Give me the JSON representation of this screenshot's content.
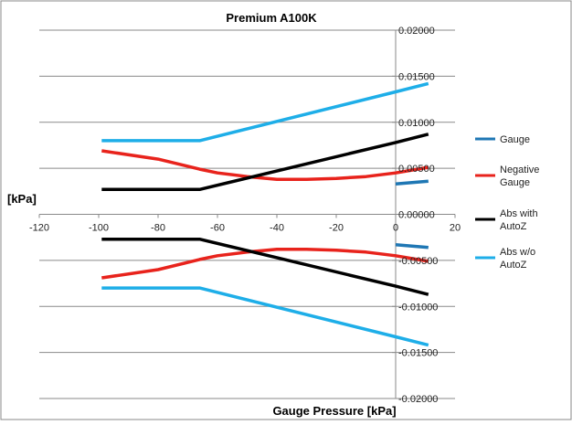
{
  "chart_data": {
    "type": "line",
    "title": "Premium A100K",
    "xlabel": "Gauge Pressure [kPa]",
    "ylabel": "[kPa]",
    "xlim": [
      -120,
      20
    ],
    "ylim": [
      -0.02,
      0.02
    ],
    "x_ticks": [
      "-120",
      "-100",
      "-80",
      "-60",
      "-40",
      "-20",
      "0",
      "20"
    ],
    "y_ticks": [
      "0.02000",
      "0.01500",
      "0.01000",
      "0.00500",
      "0.00000",
      "-0.00500",
      "-0.01000",
      "-0.01500",
      "-0.02000"
    ],
    "grid": "horizontal",
    "legend": "right",
    "series": [
      {
        "name": "Gauge",
        "color": "#1f77b4",
        "segments": [
          [
            [
              0,
              0.0033
            ],
            [
              11,
              0.0036
            ]
          ],
          [
            [
              0,
              -0.0033
            ],
            [
              11,
              -0.0036
            ]
          ]
        ]
      },
      {
        "name": "Negative Gauge",
        "color": "#e8231c",
        "segments": [
          [
            [
              -99,
              0.0069
            ],
            [
              -80,
              0.006
            ],
            [
              -66,
              0.0049
            ],
            [
              -60,
              0.0045
            ],
            [
              -50,
              0.0041
            ],
            [
              -40,
              0.0038
            ],
            [
              -30,
              0.0038
            ],
            [
              -20,
              0.0039
            ],
            [
              -10,
              0.0041
            ],
            [
              0,
              0.0045
            ],
            [
              11,
              0.0051
            ]
          ],
          [
            [
              -99,
              -0.0069
            ],
            [
              -80,
              -0.006
            ],
            [
              -66,
              -0.0049
            ],
            [
              -60,
              -0.0045
            ],
            [
              -50,
              -0.0041
            ],
            [
              -40,
              -0.0038
            ],
            [
              -30,
              -0.0038
            ],
            [
              -20,
              -0.0039
            ],
            [
              -10,
              -0.0041
            ],
            [
              0,
              -0.0045
            ],
            [
              11,
              -0.0051
            ]
          ]
        ]
      },
      {
        "name": "Abs with AutoZ",
        "color": "#000000",
        "segments": [
          [
            [
              -99,
              0.0027
            ],
            [
              -66,
              0.0027
            ],
            [
              0,
              0.0078
            ],
            [
              11,
              0.0087
            ]
          ],
          [
            [
              -99,
              -0.0027
            ],
            [
              -66,
              -0.0027
            ],
            [
              0,
              -0.0078
            ],
            [
              11,
              -0.0087
            ]
          ]
        ]
      },
      {
        "name": "Abs w/o AutoZ",
        "color": "#1eaee8",
        "segments": [
          [
            [
              -99,
              0.008
            ],
            [
              -66,
              0.008
            ],
            [
              0,
              0.0133
            ],
            [
              11,
              0.0142
            ]
          ],
          [
            [
              -99,
              -0.008
            ],
            [
              -66,
              -0.008
            ],
            [
              0,
              -0.0133
            ],
            [
              11,
              -0.0142
            ]
          ]
        ]
      }
    ]
  }
}
